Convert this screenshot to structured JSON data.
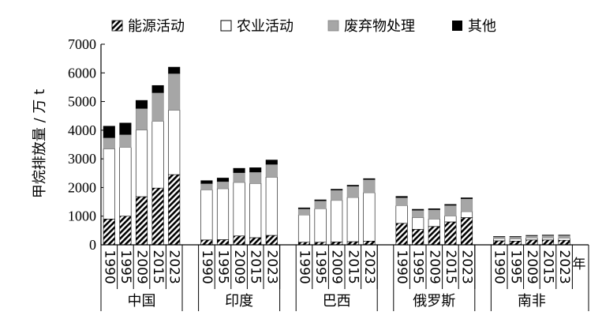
{
  "chart_data": {
    "type": "bar",
    "stacked": true,
    "ylabel": "甲烷排放量 / 万 t",
    "xlabel": "年",
    "ylim": [
      0,
      7000
    ],
    "yticks": [
      0,
      1000,
      2000,
      3000,
      4000,
      5000,
      6000,
      7000
    ],
    "grid": false,
    "legend_position": "top",
    "groups": [
      {
        "name": "中国",
        "years": [
          "1990",
          "1995",
          "2009",
          "2015",
          "2023"
        ]
      },
      {
        "name": "印度",
        "years": [
          "1990",
          "1995",
          "2009",
          "2015",
          "2023"
        ]
      },
      {
        "name": "巴西",
        "years": [
          "1990",
          "1995",
          "2009",
          "2015",
          "2023"
        ]
      },
      {
        "name": "俄罗斯",
        "years": [
          "1990",
          "1995",
          "2009",
          "2015",
          "2023"
        ]
      },
      {
        "name": "南非",
        "years": [
          "1990",
          "1995",
          "2009",
          "2015",
          "2023"
        ]
      }
    ],
    "series": [
      {
        "name": "能源活动",
        "fill": "hatch",
        "values": [
          [
            900,
            1000,
            1680,
            1980,
            2450
          ],
          [
            170,
            180,
            310,
            250,
            330
          ],
          [
            90,
            90,
            100,
            110,
            130
          ],
          [
            750,
            540,
            640,
            800,
            950
          ],
          [
            140,
            130,
            170,
            170,
            160
          ]
        ]
      },
      {
        "name": "农业活动",
        "fill": "#ffffff",
        "values": [
          [
            2450,
            2400,
            2330,
            2330,
            2250
          ],
          [
            1750,
            1780,
            1870,
            1890,
            2030
          ],
          [
            950,
            1170,
            1450,
            1540,
            1690
          ],
          [
            620,
            410,
            260,
            210,
            210
          ],
          [
            80,
            80,
            70,
            70,
            70
          ]
        ]
      },
      {
        "name": "废弃物处理",
        "fill": "#a6a6a6",
        "values": [
          [
            390,
            450,
            750,
            1000,
            1280
          ],
          [
            220,
            250,
            340,
            400,
            450
          ],
          [
            220,
            280,
            360,
            400,
            460
          ],
          [
            280,
            260,
            330,
            370,
            450
          ],
          [
            60,
            70,
            80,
            90,
            100
          ]
        ]
      },
      {
        "name": "其他",
        "fill": "#000000",
        "values": [
          [
            400,
            400,
            280,
            250,
            220
          ],
          [
            100,
            120,
            150,
            150,
            150
          ],
          [
            30,
            30,
            30,
            30,
            30
          ],
          [
            40,
            30,
            30,
            30,
            30
          ],
          [
            10,
            10,
            10,
            10,
            10
          ]
        ]
      }
    ]
  }
}
